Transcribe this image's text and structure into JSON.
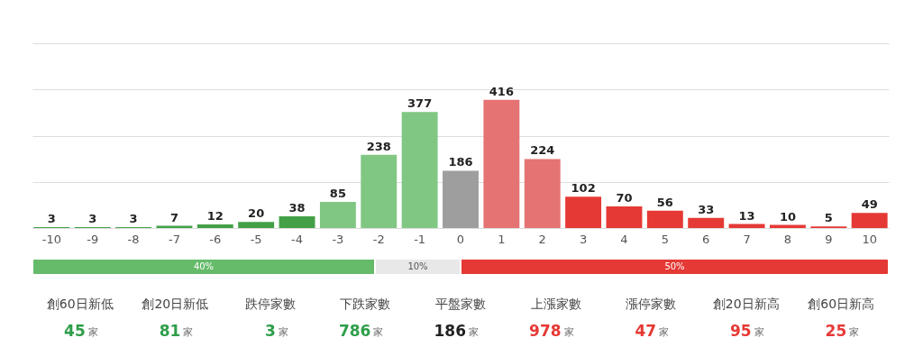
{
  "chart_data": [
    {
      "type": "bar",
      "categories": [
        "-10",
        "-9",
        "-8",
        "-7",
        "-6",
        "-5",
        "-4",
        "-3",
        "-2",
        "-1",
        "0",
        "1",
        "2",
        "3",
        "4",
        "5",
        "6",
        "7",
        "8",
        "9",
        "10"
      ],
      "values": [
        3,
        3,
        3,
        7,
        12,
        20,
        38,
        85,
        238,
        377,
        186,
        416,
        224,
        102,
        70,
        56,
        33,
        13,
        10,
        5,
        49
      ],
      "colors": [
        "#43a047",
        "#43a047",
        "#43a047",
        "#43a047",
        "#43a047",
        "#43a047",
        "#43a047",
        "#81c784",
        "#81c784",
        "#81c784",
        "#9e9e9e",
        "#e57373",
        "#e57373",
        "#e53935",
        "#e53935",
        "#e53935",
        "#e53935",
        "#e53935",
        "#e53935",
        "#e53935",
        "#e53935"
      ],
      "ylim": [
        0,
        600
      ],
      "yticks": [
        {
          "value": 0,
          "label": null
        },
        {
          "value": 150,
          "label": null
        },
        {
          "value": 300,
          "label": null
        },
        {
          "value": 450,
          "label": null
        },
        {
          "value": 600,
          "label": null
        }
      ],
      "grid": "y",
      "tick_labels": "x",
      "data_labels": true
    },
    {
      "type": "bar",
      "orientation": "horizontal",
      "stacked": true,
      "categories": [
        null
      ],
      "series": [
        {
          "color": "#66bb6a",
          "values": [
            40
          ],
          "value_labels": [
            "40%"
          ]
        },
        {
          "color": "#e8e8e8",
          "values": [
            10
          ],
          "value_labels": [
            "10%"
          ]
        },
        {
          "color": "#e53935",
          "values": [
            50
          ],
          "value_labels": [
            "50%"
          ]
        }
      ],
      "xlim": [
        0,
        100
      ],
      "tick_labels": false
    },
    {
      "type": "other",
      "categories": [
        "創60日新低",
        "創20日新低",
        "跌停家數",
        "下跌家數",
        "平盤家數",
        "上漲家數",
        "漲停家數",
        "創20日新高",
        "創60日新高"
      ],
      "values": [
        45,
        81,
        3,
        786,
        186,
        978,
        47,
        95,
        25
      ],
      "colors": [
        "#2e9e4a",
        "#2e9e4a",
        "#2e9e4a",
        "#2e9e4a",
        "#222222",
        "#e53935",
        "#e53935",
        "#e53935",
        "#e53935"
      ],
      "annotations": [
        "家"
      ],
      "data_labels": true
    }
  ]
}
